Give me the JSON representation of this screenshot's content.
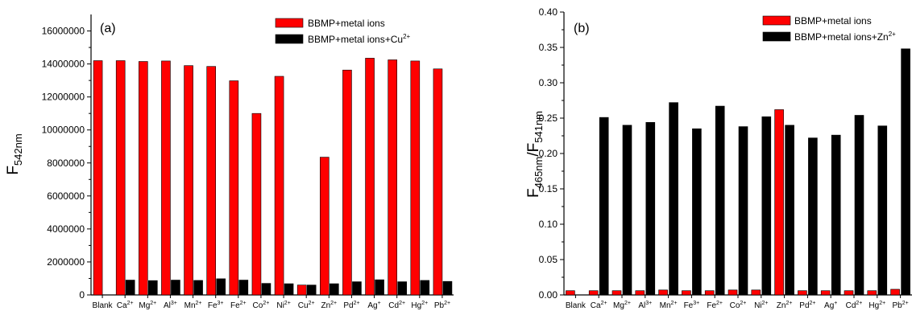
{
  "chart_data": [
    {
      "type": "bar",
      "panel_label": "(a)",
      "ylabel": {
        "main": "F",
        "sub": "542nm"
      },
      "ylim": [
        0,
        17000000
      ],
      "yticks": [
        0,
        2000000,
        4000000,
        6000000,
        8000000,
        10000000,
        12000000,
        14000000,
        16000000
      ],
      "categories": [
        {
          "base": "Blank",
          "sup": ""
        },
        {
          "base": "Ca",
          "sup": "2+"
        },
        {
          "base": "Mg",
          "sup": "2+"
        },
        {
          "base": "Al",
          "sup": "3+"
        },
        {
          "base": "Mn",
          "sup": "2+"
        },
        {
          "base": "Fe",
          "sup": "3+"
        },
        {
          "base": "Fe",
          "sup": "2+"
        },
        {
          "base": "Co",
          "sup": "2+"
        },
        {
          "base": "Ni",
          "sup": "2+"
        },
        {
          "base": "Cu",
          "sup": "2+"
        },
        {
          "base": "Zn",
          "sup": "2+"
        },
        {
          "base": "Pd",
          "sup": "2+"
        },
        {
          "base": "Ag",
          "sup": "+"
        },
        {
          "base": "Cd",
          "sup": "2+"
        },
        {
          "base": "Hg",
          "sup": "2+"
        },
        {
          "base": "Pb",
          "sup": "2+"
        }
      ],
      "series": [
        {
          "name": "BBMP+metal ions",
          "legend_base": "BBMP+metal ions",
          "legend_sup": "",
          "color": "#ff0000",
          "values": [
            14200000,
            14200000,
            14150000,
            14180000,
            13900000,
            13850000,
            12980000,
            11000000,
            13250000,
            600000,
            8350000,
            13630000,
            14350000,
            14250000,
            14180000,
            13700000
          ]
        },
        {
          "name": "BBMP+metal ions+Cu2+",
          "legend_base": "BBMP+metal ions+Cu",
          "legend_sup": "2+",
          "color": "#000000",
          "values": [
            null,
            900000,
            870000,
            900000,
            880000,
            980000,
            900000,
            700000,
            680000,
            600000,
            680000,
            800000,
            920000,
            800000,
            880000,
            820000
          ]
        }
      ]
    },
    {
      "type": "bar",
      "panel_label": "(b)",
      "ylabel": {
        "main": "F",
        "sub1": "465nm",
        "mid": "/F",
        "sub2": "541nm"
      },
      "ylim": [
        0,
        0.4
      ],
      "yticks": [
        "0.00",
        "0.05",
        "0.10",
        "0.15",
        "0.20",
        "0.25",
        "0.30",
        "0.35",
        "0.40"
      ],
      "categories": [
        {
          "base": "Blank",
          "sup": ""
        },
        {
          "base": "Ca",
          "sup": "2+"
        },
        {
          "base": "Mg",
          "sup": "2+"
        },
        {
          "base": "Al",
          "sup": "3+"
        },
        {
          "base": "Mn",
          "sup": "2+"
        },
        {
          "base": "Fe",
          "sup": "3+"
        },
        {
          "base": "Fe",
          "sup": "2+"
        },
        {
          "base": "Co",
          "sup": "2+"
        },
        {
          "base": "Ni",
          "sup": "2+"
        },
        {
          "base": "Zn",
          "sup": "2+"
        },
        {
          "base": "Pd",
          "sup": "2+"
        },
        {
          "base": "Ag",
          "sup": "+"
        },
        {
          "base": "Cd",
          "sup": "2+"
        },
        {
          "base": "Hg",
          "sup": "2+"
        },
        {
          "base": "Pb",
          "sup": "2+"
        }
      ],
      "series": [
        {
          "name": "BBMP+metal ions",
          "legend_base": "BBMP+metal ions",
          "legend_sup": "",
          "color": "#ff0000",
          "values": [
            0.006,
            0.006,
            0.006,
            0.006,
            0.007,
            0.006,
            0.006,
            0.007,
            0.007,
            0.262,
            0.006,
            0.006,
            0.006,
            0.006,
            0.008
          ]
        },
        {
          "name": "BBMP+metal ions+Zn2+",
          "legend_base": "BBMP+metal ions+Zn",
          "legend_sup": "2+",
          "color": "#000000",
          "values": [
            null,
            0.251,
            0.24,
            0.244,
            0.272,
            0.235,
            0.267,
            0.238,
            0.252,
            0.24,
            0.222,
            0.226,
            0.254,
            0.239,
            0.348
          ]
        }
      ]
    }
  ]
}
